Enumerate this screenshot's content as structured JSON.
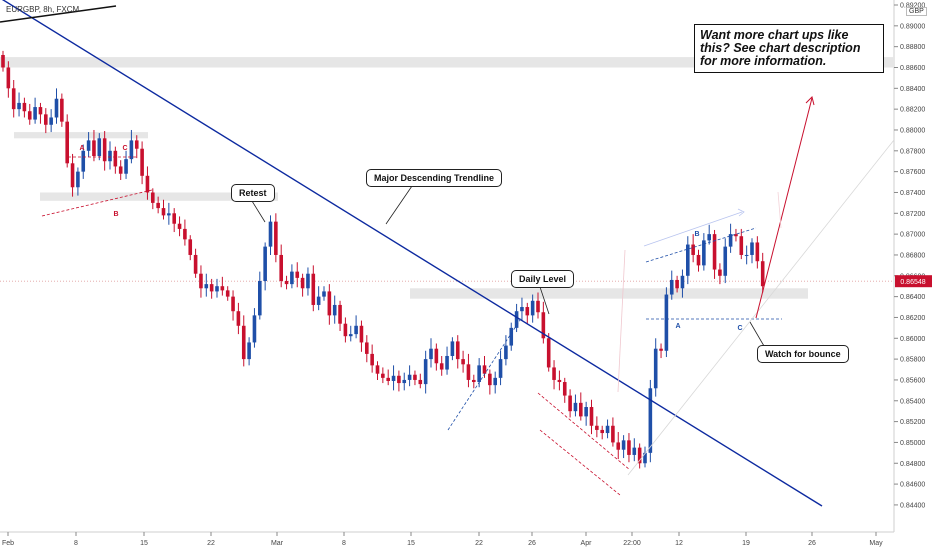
{
  "symbol_title": "EURGBP, 8h, FXCM",
  "currency": "GBP",
  "promo_text": "Want more chart ups like this? See chart description for more information.",
  "annotations": {
    "retest": "Retest",
    "major_trendline": "Major Descending Trendline",
    "daily_level": "Daily Level",
    "watch_bounce": "Watch for bounce",
    "pattern_a1": "A",
    "pattern_b1": "B",
    "pattern_c1": "C",
    "pattern_a2": "A",
    "pattern_b2": "B",
    "pattern_c2": "C"
  },
  "colors": {
    "bull": "#1f4fa8",
    "bear": "#c8102e",
    "trendline": "#0d2aa0",
    "zone": "#e6e6e6",
    "price_tag": "#c8102e"
  },
  "chart_data": {
    "type": "candlestick",
    "ylim": [
      0.844,
      0.892
    ],
    "y_ticks": [
      "0.89200",
      "0.89000",
      "0.88800",
      "0.88600",
      "0.88400",
      "0.88200",
      "0.88000",
      "0.87800",
      "0.87600",
      "0.87400",
      "0.87200",
      "0.87000",
      "0.86800",
      "0.86600",
      "0.86400",
      "0.86200",
      "0.86000",
      "0.85800",
      "0.85600",
      "0.85400",
      "0.85200",
      "0.85000",
      "0.84800",
      "0.84600",
      "0.84400"
    ],
    "x_ticks": [
      "Feb",
      "8",
      "15",
      "22",
      "Mar",
      "8",
      "15",
      "22",
      "26",
      "Apr",
      "22:00",
      "12",
      "19",
      "26",
      "May"
    ],
    "last_price": "0.86548",
    "levels": {
      "upper_supply_zone": [
        0.886,
        0.887
      ],
      "pattern_zone_1": [
        0.8792,
        0.8798
      ],
      "retest_zone": [
        0.8732,
        0.874
      ],
      "daily_level_zone": [
        0.8638,
        0.8648
      ]
    },
    "major_trendline": [
      [
        "Feb",
        0.8937
      ],
      [
        "May",
        0.846
      ]
    ],
    "closes": [
      0.886,
      0.884,
      0.882,
      0.8826,
      0.8818,
      0.881,
      0.8822,
      0.8815,
      0.8805,
      0.8812,
      0.883,
      0.8808,
      0.8768,
      0.8745,
      0.876,
      0.878,
      0.879,
      0.8775,
      0.8792,
      0.877,
      0.878,
      0.8765,
      0.8758,
      0.8772,
      0.879,
      0.8782,
      0.8756,
      0.874,
      0.873,
      0.8725,
      0.8718,
      0.872,
      0.871,
      0.8705,
      0.8695,
      0.868,
      0.8662,
      0.8648,
      0.8652,
      0.8645,
      0.865,
      0.8646,
      0.864,
      0.8626,
      0.8612,
      0.858,
      0.8596,
      0.8622,
      0.8655,
      0.8688,
      0.8712,
      0.868,
      0.8655,
      0.8652,
      0.8664,
      0.8658,
      0.8648,
      0.8662,
      0.8632,
      0.864,
      0.8645,
      0.8622,
      0.8632,
      0.8614,
      0.8602,
      0.8604,
      0.8612,
      0.8596,
      0.8585,
      0.8574,
      0.8566,
      0.8562,
      0.8559,
      0.8564,
      0.8557,
      0.856,
      0.8565,
      0.856,
      0.8556,
      0.858,
      0.859,
      0.8576,
      0.857,
      0.8583,
      0.8597,
      0.858,
      0.8575,
      0.856,
      0.8558,
      0.8574,
      0.8566,
      0.8555,
      0.8562,
      0.858,
      0.8593,
      0.861,
      0.8626,
      0.863,
      0.8622,
      0.8636,
      0.8625,
      0.86,
      0.8572,
      0.856,
      0.8558,
      0.8545,
      0.853,
      0.8538,
      0.8525,
      0.8534,
      0.8516,
      0.8512,
      0.8509,
      0.8516,
      0.85,
      0.8493,
      0.8502,
      0.8488,
      0.8495,
      0.848,
      0.849,
      0.8552,
      0.859,
      0.8588,
      0.8642,
      0.8656,
      0.8648,
      0.866,
      0.869,
      0.868,
      0.867,
      0.8694,
      0.87,
      0.8666,
      0.866,
      0.8688,
      0.87,
      0.8698,
      0.868,
      0.868,
      0.8692,
      0.8674,
      0.865
    ]
  }
}
